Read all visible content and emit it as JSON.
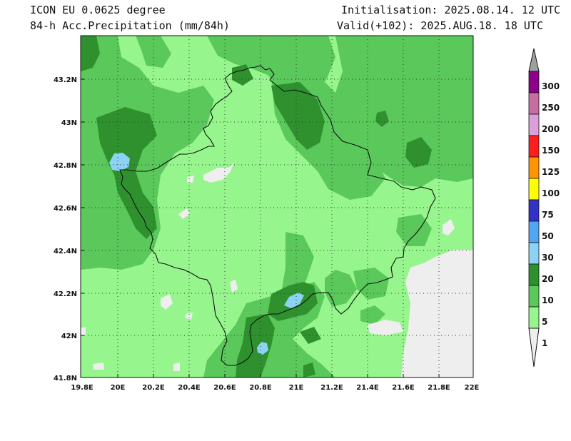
{
  "header": {
    "model": "ICON EU 0.0625 degree",
    "field": "84-h Acc.Precipitation (mm/84h)",
    "init": "Initialisation: 2025.08.14. 12 UTC",
    "valid": "Valid(+102): 2025.AUG.18. 18 UTC"
  },
  "axes": {
    "lat_labels": [
      "43.2N",
      "43N",
      "42.8N",
      "42.6N",
      "42.4N",
      "42.2N",
      "42N",
      "41.8N"
    ],
    "lon_labels": [
      "19.8E",
      "20E",
      "20.2E",
      "20.4E",
      "20.6E",
      "20.8E",
      "21E",
      "21.2E",
      "21.4E",
      "21.6E",
      "21.8E",
      "22E"
    ]
  },
  "colors": {
    "lt1": "#eeeeee",
    "c1": "#96f58c",
    "c5": "#5ac85a",
    "c10": "#2e912e",
    "c20": "#8cd2f5",
    "c30": "#50a5f5",
    "c50": "#3232c8",
    "c75": "#ffff00",
    "c100": "#ff9600",
    "c125": "#ff1e1e",
    "c150": "#dba0dc",
    "c200": "#c86ea0",
    "c250": "#8c008c",
    "c300": "#a0a0a0"
  },
  "colorbar": {
    "labels": [
      "1",
      "5",
      "10",
      "20",
      "30",
      "50",
      "75",
      "100",
      "125",
      "150",
      "200",
      "250",
      "300"
    ]
  }
}
